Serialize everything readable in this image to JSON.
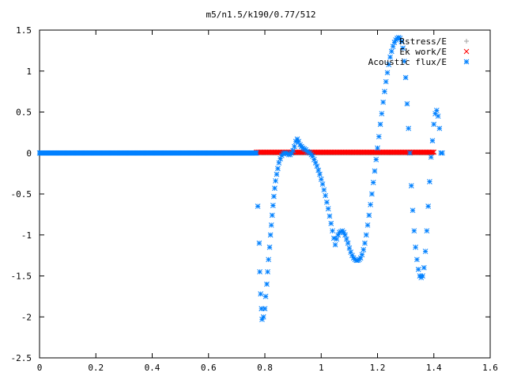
{
  "chart_data": {
    "type": "scatter",
    "title": "m5/n1.5/k190/0.77/512",
    "xlim": [
      0,
      1.6
    ],
    "ylim": [
      -2.5,
      1.5
    ],
    "xticks": [
      0,
      0.2,
      0.4,
      0.6,
      0.8,
      1,
      1.2,
      1.4,
      1.6
    ],
    "yticks": [
      -2.5,
      -2,
      -1.5,
      -1,
      -0.5,
      0,
      0.5,
      1,
      1.5
    ],
    "xtick_labels": [
      "0",
      "0.2",
      "0.4",
      "0.6",
      "0.8",
      "1",
      "1.2",
      "1.4",
      "1.6"
    ],
    "ytick_labels": [
      "-2.5",
      "-2",
      "-1.5",
      "-1",
      "-0.5",
      "0",
      "0.5",
      "1",
      "1.5"
    ],
    "grid": false,
    "legend_position": "top-right",
    "series": [
      {
        "name": "Rstress/E",
        "marker": "plus",
        "color": "#a0a0a0",
        "x_range": [
          0,
          1.4
        ],
        "y_const": 0.0,
        "n": 520
      },
      {
        "name": "Ek work/E",
        "marker": "cross",
        "color": "#ff0000",
        "x_range": [
          0.77,
          1.4
        ],
        "y_const": 0.01,
        "n": 160
      },
      {
        "name": "Acoustic flux/E",
        "marker": "asterisk",
        "color": "#0080ff",
        "baseline": {
          "x_range": [
            0,
            0.77
          ],
          "y": 0.0,
          "n": 300
        },
        "points": [
          [
            0.775,
            -0.65
          ],
          [
            0.78,
            -1.1
          ],
          [
            0.782,
            -1.45
          ],
          [
            0.785,
            -1.72
          ],
          [
            0.788,
            -1.9
          ],
          [
            0.79,
            -2.03
          ],
          [
            0.795,
            -2.0
          ],
          [
            0.8,
            -1.9
          ],
          [
            0.803,
            -1.75
          ],
          [
            0.807,
            -1.6
          ],
          [
            0.81,
            -1.45
          ],
          [
            0.813,
            -1.3
          ],
          [
            0.817,
            -1.15
          ],
          [
            0.82,
            -1.0
          ],
          [
            0.823,
            -0.88
          ],
          [
            0.826,
            -0.76
          ],
          [
            0.829,
            -0.64
          ],
          [
            0.832,
            -0.53
          ],
          [
            0.835,
            -0.43
          ],
          [
            0.838,
            -0.34
          ],
          [
            0.842,
            -0.26
          ],
          [
            0.846,
            -0.19
          ],
          [
            0.85,
            -0.12
          ],
          [
            0.855,
            -0.07
          ],
          [
            0.86,
            -0.03
          ],
          [
            0.865,
            -0.01
          ],
          [
            0.87,
            0.0
          ],
          [
            0.875,
            0.0
          ],
          [
            0.88,
            -0.01
          ],
          [
            0.885,
            -0.02
          ],
          [
            0.89,
            -0.02
          ],
          [
            0.895,
            0.0
          ],
          [
            0.9,
            0.03
          ],
          [
            0.905,
            0.08
          ],
          [
            0.91,
            0.14
          ],
          [
            0.915,
            0.17
          ],
          [
            0.92,
            0.14
          ],
          [
            0.925,
            0.1
          ],
          [
            0.93,
            0.08
          ],
          [
            0.935,
            0.06
          ],
          [
            0.94,
            0.05
          ],
          [
            0.945,
            0.04
          ],
          [
            0.95,
            0.02
          ],
          [
            0.955,
            0.01
          ],
          [
            0.96,
            0.0
          ],
          [
            0.965,
            -0.02
          ],
          [
            0.97,
            -0.04
          ],
          [
            0.975,
            -0.08
          ],
          [
            0.98,
            -0.12
          ],
          [
            0.985,
            -0.16
          ],
          [
            0.99,
            -0.21
          ],
          [
            0.995,
            -0.26
          ],
          [
            1.0,
            -0.32
          ],
          [
            1.005,
            -0.38
          ],
          [
            1.01,
            -0.45
          ],
          [
            1.015,
            -0.52
          ],
          [
            1.02,
            -0.6
          ],
          [
            1.025,
            -0.68
          ],
          [
            1.03,
            -0.77
          ],
          [
            1.035,
            -0.86
          ],
          [
            1.04,
            -0.95
          ],
          [
            1.045,
            -1.04
          ],
          [
            1.05,
            -1.12
          ],
          [
            1.055,
            -1.05
          ],
          [
            1.06,
            -1.0
          ],
          [
            1.065,
            -0.97
          ],
          [
            1.07,
            -0.96
          ],
          [
            1.075,
            -0.95
          ],
          [
            1.08,
            -0.97
          ],
          [
            1.085,
            -1.0
          ],
          [
            1.09,
            -1.05
          ],
          [
            1.095,
            -1.1
          ],
          [
            1.1,
            -1.16
          ],
          [
            1.105,
            -1.21
          ],
          [
            1.11,
            -1.25
          ],
          [
            1.115,
            -1.28
          ],
          [
            1.12,
            -1.3
          ],
          [
            1.125,
            -1.31
          ],
          [
            1.13,
            -1.31
          ],
          [
            1.135,
            -1.3
          ],
          [
            1.14,
            -1.28
          ],
          [
            1.145,
            -1.24
          ],
          [
            1.15,
            -1.18
          ],
          [
            1.155,
            -1.1
          ],
          [
            1.16,
            -1.0
          ],
          [
            1.165,
            -0.88
          ],
          [
            1.17,
            -0.76
          ],
          [
            1.175,
            -0.63
          ],
          [
            1.18,
            -0.5
          ],
          [
            1.185,
            -0.36
          ],
          [
            1.19,
            -0.22
          ],
          [
            1.195,
            -0.08
          ],
          [
            1.2,
            0.06
          ],
          [
            1.205,
            0.2
          ],
          [
            1.21,
            0.35
          ],
          [
            1.215,
            0.48
          ],
          [
            1.22,
            0.62
          ],
          [
            1.225,
            0.75
          ],
          [
            1.23,
            0.87
          ],
          [
            1.235,
            0.98
          ],
          [
            1.24,
            1.08
          ],
          [
            1.245,
            1.17
          ],
          [
            1.25,
            1.24
          ],
          [
            1.255,
            1.3
          ],
          [
            1.26,
            1.35
          ],
          [
            1.265,
            1.38
          ],
          [
            1.27,
            1.4
          ],
          [
            1.275,
            1.41
          ],
          [
            1.28,
            1.4
          ],
          [
            1.285,
            1.36
          ],
          [
            1.29,
            1.28
          ],
          [
            1.295,
            1.12
          ],
          [
            1.3,
            0.92
          ],
          [
            1.305,
            0.6
          ],
          [
            1.31,
            0.3
          ],
          [
            1.315,
            0.0
          ],
          [
            1.32,
            -0.4
          ],
          [
            1.325,
            -0.7
          ],
          [
            1.33,
            -0.95
          ],
          [
            1.335,
            -1.15
          ],
          [
            1.34,
            -1.3
          ],
          [
            1.345,
            -1.42
          ],
          [
            1.35,
            -1.5
          ],
          [
            1.355,
            -1.52
          ],
          [
            1.36,
            -1.5
          ],
          [
            1.365,
            -1.4
          ],
          [
            1.37,
            -1.2
          ],
          [
            1.375,
            -0.95
          ],
          [
            1.38,
            -0.65
          ],
          [
            1.385,
            -0.35
          ],
          [
            1.39,
            -0.05
          ],
          [
            1.395,
            0.15
          ],
          [
            1.4,
            0.35
          ],
          [
            1.405,
            0.48
          ],
          [
            1.41,
            0.52
          ],
          [
            1.415,
            0.45
          ],
          [
            1.42,
            0.3
          ],
          [
            1.425,
            0.0
          ],
          [
            1.43,
            0.0
          ]
        ]
      }
    ]
  }
}
